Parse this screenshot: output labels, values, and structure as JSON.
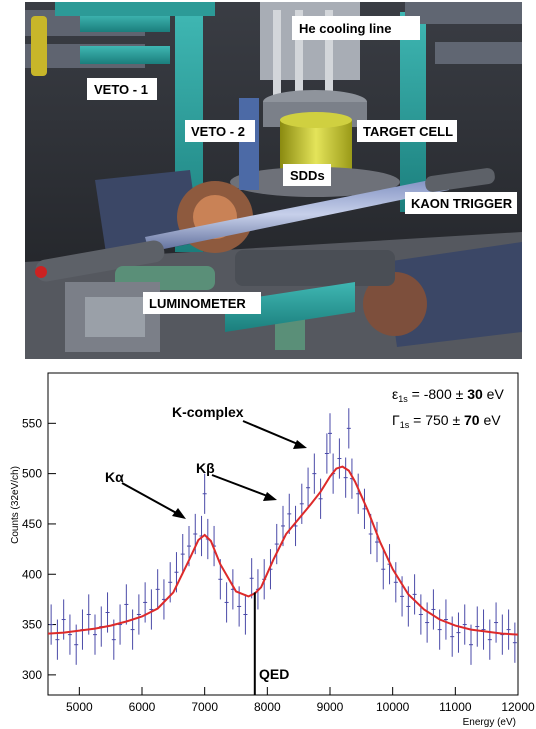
{
  "photo": {
    "labels": {
      "he_cooling": "He cooling line",
      "veto1": "VETO - 1",
      "veto2": "VETO - 2",
      "target_cell": "TARGET CELL",
      "sdds": "SDDs",
      "kaon_trigger": "KAON TRIGGER",
      "luminometer": "LUMINOMETER"
    }
  },
  "chart_data": {
    "type": "line",
    "xlabel": "Energy (eV)",
    "ylabel": "Counts (32eV/ch)",
    "xlim": [
      4500,
      12000
    ],
    "ylim": [
      280,
      600
    ],
    "xticks": [
      5000,
      6000,
      7000,
      8000,
      9000,
      10000,
      11000,
      12000
    ],
    "yticks": [
      300,
      350,
      400,
      450,
      500,
      550
    ],
    "annotations": {
      "k_alpha": "Kα",
      "k_beta": "Kβ",
      "k_complex": "K-complex",
      "qed": "QED",
      "eps_sym": "ε",
      "eps_sub": "1s",
      "eps_val": " = -800 ± ",
      "eps_err": "30",
      "eps_unit": " eV",
      "gam_sym": "Γ",
      "gam_sub": "1s",
      "gam_val": " = 750 ± ",
      "gam_err": "70",
      "gam_unit": " eV"
    },
    "qed_line_x": 7800,
    "fit": {
      "x": [
        4500,
        4750,
        5000,
        5250,
        5500,
        5750,
        6000,
        6250,
        6500,
        6750,
        6900,
        7000,
        7100,
        7250,
        7500,
        7700,
        7800,
        7900,
        8100,
        8300,
        8500,
        8700,
        8850,
        9000,
        9100,
        9200,
        9300,
        9400,
        9600,
        9800,
        10000,
        10250,
        10500,
        10750,
        11000,
        11250,
        11500,
        11750,
        12000
      ],
      "y": [
        341,
        342,
        344,
        346,
        349,
        353,
        358,
        366,
        382,
        414,
        434,
        439,
        433,
        410,
        383,
        378,
        381,
        387,
        415,
        440,
        455,
        470,
        482,
        497,
        505,
        507,
        503,
        492,
        464,
        432,
        405,
        380,
        365,
        355,
        349,
        345,
        343,
        341,
        340
      ]
    },
    "data": {
      "x": [
        4550,
        4650,
        4750,
        4850,
        4950,
        5050,
        5150,
        5250,
        5350,
        5450,
        5550,
        5650,
        5750,
        5850,
        5950,
        6050,
        6150,
        6250,
        6350,
        6450,
        6550,
        6650,
        6750,
        6850,
        6950,
        7000,
        7050,
        7150,
        7250,
        7350,
        7450,
        7550,
        7650,
        7750,
        7850,
        7950,
        8050,
        8150,
        8250,
        8350,
        8450,
        8550,
        8650,
        8750,
        8850,
        8950,
        9000,
        9050,
        9150,
        9250,
        9300,
        9350,
        9450,
        9550,
        9650,
        9750,
        9850,
        9950,
        10050,
        10150,
        10250,
        10350,
        10450,
        10550,
        10650,
        10750,
        10850,
        10950,
        11050,
        11150,
        11250,
        11350,
        11450,
        11550,
        11650,
        11750,
        11850,
        11950
      ],
      "y": [
        350,
        335,
        355,
        340,
        330,
        345,
        360,
        340,
        348,
        362,
        335,
        350,
        370,
        345,
        360,
        372,
        365,
        385,
        375,
        392,
        402,
        420,
        428,
        440,
        438,
        480,
        435,
        428,
        395,
        372,
        385,
        368,
        360,
        396,
        385,
        395,
        405,
        430,
        448,
        460,
        448,
        470,
        486,
        500,
        475,
        520,
        540,
        500,
        515,
        496,
        545,
        495,
        480,
        465,
        440,
        432,
        405,
        410,
        392,
        378,
        368,
        380,
        360,
        352,
        365,
        345,
        355,
        338,
        342,
        350,
        330,
        348,
        345,
        335,
        352,
        340,
        345,
        332
      ],
      "err": 20
    }
  }
}
